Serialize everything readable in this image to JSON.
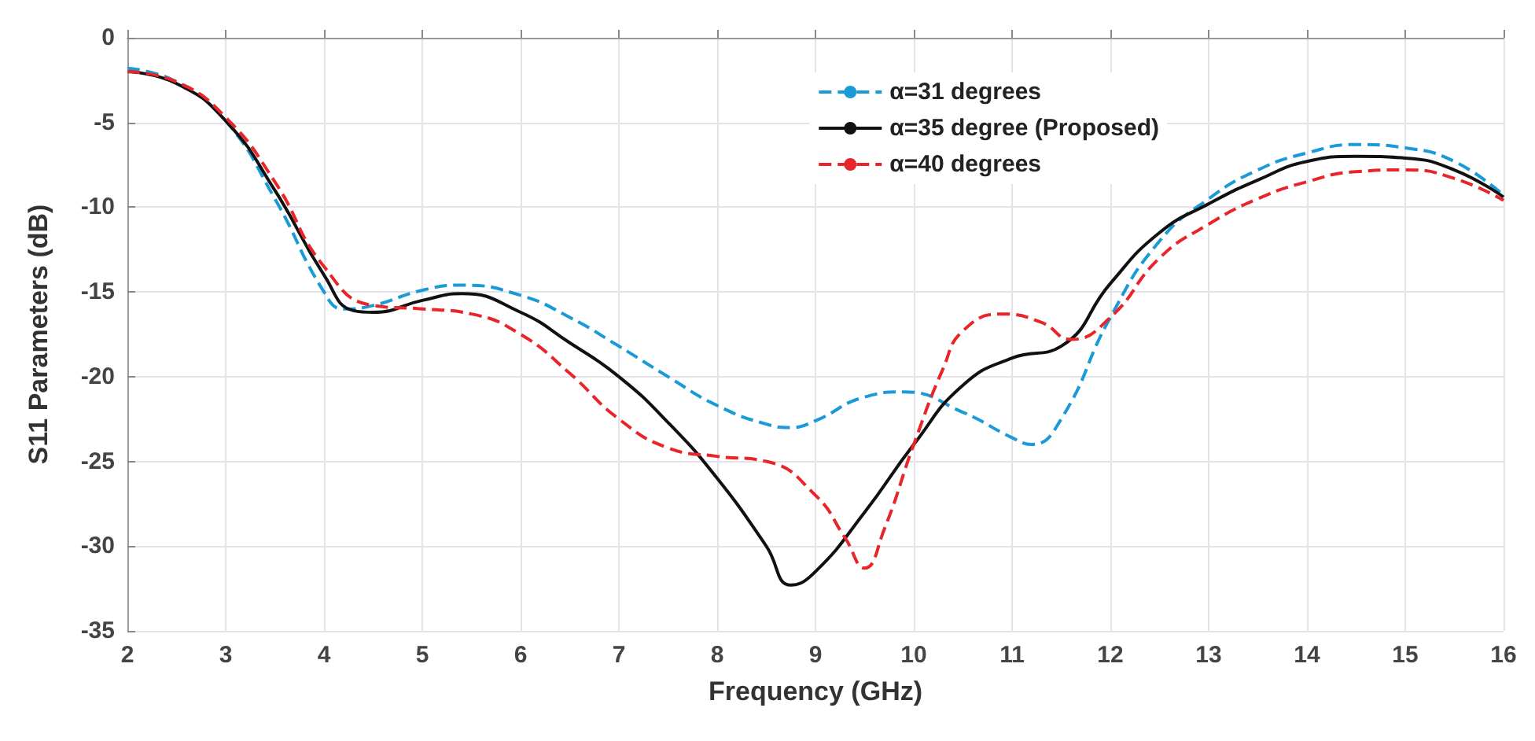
{
  "chart_data": {
    "type": "line",
    "xlabel": "Frequency (GHz)",
    "ylabel": "S11 Parameters (dB)",
    "xlim": [
      2,
      16
    ],
    "xticks": [
      2,
      3,
      4,
      5,
      6,
      7,
      8,
      9,
      10,
      11,
      12,
      13,
      14,
      15,
      16
    ],
    "ylim": [
      -35,
      0
    ],
    "yticks": [
      -35,
      -30,
      -25,
      -20,
      -15,
      -10,
      -5,
      0
    ],
    "grid": true,
    "legend": "top right",
    "series": [
      {
        "name": "α=31 degrees",
        "color": "#1a9ad6",
        "line_style": "dashed",
        "x": [
          2,
          2.5,
          3,
          3.5,
          4,
          4.2,
          4.5,
          5,
          5.4,
          6,
          6.5,
          7,
          7.5,
          8,
          8.5,
          8.75,
          9,
          9.5,
          9.9,
          10.5,
          11,
          11.2,
          11.5,
          12,
          12.5,
          13,
          13.5,
          14,
          14.5,
          15,
          15.5,
          16
        ],
        "values": [
          -1.8,
          -2.6,
          -4.9,
          -9.5,
          -15,
          -16,
          -15.8,
          -14.9,
          -14.6,
          -15.2,
          -16.5,
          -18.2,
          -20,
          -21.7,
          -22.8,
          -23,
          -22.6,
          -21.2,
          -20.9,
          -22.1,
          -23.6,
          -24,
          -22.5,
          -16.5,
          -12,
          -9.5,
          -7.8,
          -6.8,
          -6.3,
          -6.5,
          -7.3,
          -9.3
        ]
      },
      {
        "name": "α=35 degree (Proposed)",
        "color": "#111111",
        "line_style": "solid",
        "x": [
          2,
          2.5,
          3,
          3.5,
          4,
          4.3,
          4.5,
          5,
          5.4,
          6,
          6.5,
          7,
          7.5,
          8,
          8.5,
          8.75,
          9,
          9.5,
          10,
          10.5,
          11,
          11.5,
          12,
          12.5,
          13,
          13.5,
          14,
          14.5,
          15,
          15.5,
          16
        ],
        "values": [
          -2,
          -2.7,
          -4.9,
          -9,
          -14,
          -16.1,
          -16.2,
          -15.5,
          -15.1,
          -16.2,
          -18,
          -20,
          -22.7,
          -26,
          -30,
          -32.3,
          -31.5,
          -28,
          -24,
          -20.5,
          -18.9,
          -18.2,
          -14.5,
          -11.5,
          -9.8,
          -8.4,
          -7.3,
          -7,
          -7.1,
          -7.8,
          -9.4
        ]
      },
      {
        "name": "α=40 degrees",
        "color": "#e8262a",
        "line_style": "dashed",
        "x": [
          2,
          2.5,
          3,
          3.5,
          4,
          4.5,
          5,
          5.5,
          6,
          6.5,
          7,
          7.5,
          8,
          8.5,
          9,
          9.3,
          9.5,
          9.7,
          10,
          10.3,
          10.5,
          10.9,
          11.3,
          11.6,
          12,
          12.5,
          13,
          13.5,
          14,
          14.5,
          15,
          15.5,
          16
        ],
        "values": [
          -2,
          -2.6,
          -4.7,
          -8.5,
          -13.5,
          -15.8,
          -16,
          -16.3,
          -17.5,
          -19.8,
          -22.5,
          -24.2,
          -24.7,
          -25,
          -27,
          -29.5,
          -31.3,
          -29,
          -24,
          -19.5,
          -17.3,
          -16.3,
          -16.8,
          -17.8,
          -16.5,
          -13,
          -11,
          -9.5,
          -8.5,
          -7.9,
          -7.8,
          -8.3,
          -9.6
        ]
      }
    ]
  }
}
